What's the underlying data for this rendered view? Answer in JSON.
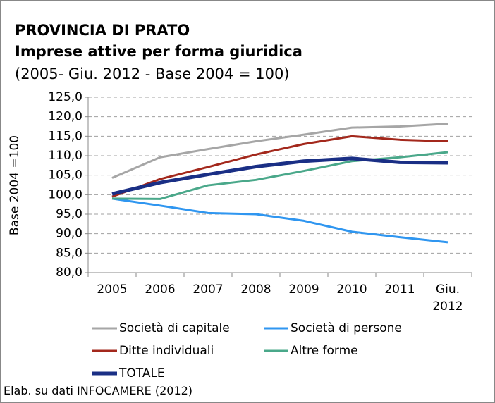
{
  "chart_data": {
    "type": "line",
    "title": "PROVINCIA DI PRATO",
    "subtitle": "Imprese attive per forma giuridica",
    "note": "(2005- Giu. 2012 - Base 2004 = 100)",
    "ylabel": "Base 2004 =100",
    "source": "Elab. su dati INFOCAMERE (2012)",
    "categories": [
      "2005",
      "2006",
      "2007",
      "2008",
      "2009",
      "2010",
      "2011",
      "Giu. 2012"
    ],
    "series": [
      {
        "name": "Società di capitale",
        "color": "#a6a6a6",
        "values": [
          104.3,
          109.6,
          111.7,
          113.7,
          115.4,
          117.2,
          117.5,
          118.2
        ]
      },
      {
        "name": "Società di persone",
        "color": "#2f96f0",
        "values": [
          99.0,
          97.2,
          95.3,
          95.0,
          93.3,
          90.5,
          89.1,
          87.8
        ]
      },
      {
        "name": "Ditte individuali",
        "color": "#a3281c",
        "values": [
          99.5,
          104.0,
          107.1,
          110.3,
          113.0,
          115.0,
          114.1,
          113.7
        ]
      },
      {
        "name": "Altre forme",
        "color": "#4aa88a",
        "values": [
          99.0,
          98.9,
          102.4,
          103.8,
          106.1,
          108.6,
          109.6,
          110.9
        ]
      },
      {
        "name": "TOTALE",
        "color": "#1a2f85",
        "values": [
          100.2,
          103.1,
          105.2,
          107.2,
          108.6,
          109.3,
          108.3,
          108.2
        ]
      }
    ],
    "ylim": [
      80,
      125
    ],
    "yticks": [
      {
        "value": 80,
        "label": "80,0"
      },
      {
        "value": 85,
        "label": "85,0"
      },
      {
        "value": 90,
        "label": "90,0"
      },
      {
        "value": 95,
        "label": "95,0"
      },
      {
        "value": 100,
        "label": "100,0"
      },
      {
        "value": 105,
        "label": "105,0"
      },
      {
        "value": 110,
        "label": "110,0"
      },
      {
        "value": 115,
        "label": "115,0"
      },
      {
        "value": 120,
        "label": "120,0"
      },
      {
        "value": 125,
        "label": "125,0"
      }
    ],
    "grid": true
  }
}
